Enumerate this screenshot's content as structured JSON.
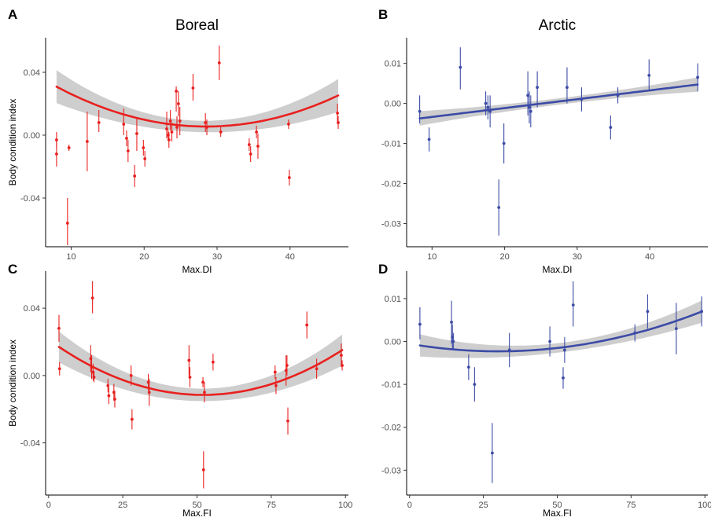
{
  "chart_data": [
    {
      "panel": "A",
      "title": "Boreal",
      "type": "scatter",
      "xlabel": "Max.DI",
      "ylabel": "Body condition index",
      "xlim": [
        6.5,
        48
      ],
      "ylim": [
        -0.071,
        0.062
      ],
      "xticks": [
        10,
        20,
        30,
        40
      ],
      "yticks": [
        0.04,
        0.0,
        -0.04
      ],
      "ytick_labels": [
        "0.04",
        "0.00",
        "-0.04"
      ],
      "color": "#e8211f",
      "points": [
        {
          "x": 8.0,
          "y": -0.003,
          "lo": -0.008,
          "hi": 0.002
        },
        {
          "x": 8.0,
          "y": -0.012,
          "lo": -0.02,
          "hi": -0.004
        },
        {
          "x": 9.5,
          "y": -0.056,
          "lo": -0.07,
          "hi": -0.04
        },
        {
          "x": 9.7,
          "y": -0.008,
          "lo": -0.01,
          "hi": -0.006
        },
        {
          "x": 12.2,
          "y": -0.004,
          "lo": -0.023,
          "hi": 0.015
        },
        {
          "x": 13.8,
          "y": 0.008,
          "lo": 0.002,
          "hi": 0.016
        },
        {
          "x": 17.2,
          "y": 0.007,
          "lo": 0.0,
          "hi": 0.017
        },
        {
          "x": 17.6,
          "y": -0.002,
          "lo": -0.007,
          "hi": 0.003
        },
        {
          "x": 17.8,
          "y": -0.01,
          "lo": -0.017,
          "hi": -0.003
        },
        {
          "x": 18.7,
          "y": -0.026,
          "lo": -0.033,
          "hi": -0.019
        },
        {
          "x": 19.0,
          "y": 0.001,
          "lo": -0.01,
          "hi": 0.011
        },
        {
          "x": 19.9,
          "y": -0.008,
          "lo": -0.013,
          "hi": -0.003
        },
        {
          "x": 20.1,
          "y": -0.015,
          "lo": -0.02,
          "hi": -0.01
        },
        {
          "x": 23.1,
          "y": 0.004,
          "lo": -0.002,
          "hi": 0.015
        },
        {
          "x": 23.3,
          "y": 0.0,
          "lo": -0.003,
          "hi": 0.003
        },
        {
          "x": 23.4,
          "y": -0.003,
          "lo": -0.008,
          "hi": 0.002
        },
        {
          "x": 23.6,
          "y": 0.009,
          "lo": 0.003,
          "hi": 0.016
        },
        {
          "x": 23.8,
          "y": 0.002,
          "lo": -0.004,
          "hi": 0.008
        },
        {
          "x": 24.4,
          "y": 0.028,
          "lo": 0.015,
          "hi": 0.031
        },
        {
          "x": 24.5,
          "y": 0.005,
          "lo": -0.002,
          "hi": 0.012
        },
        {
          "x": 24.7,
          "y": 0.02,
          "lo": 0.012,
          "hi": 0.028
        },
        {
          "x": 24.9,
          "y": 0.009,
          "lo": 0.0,
          "hi": 0.018
        },
        {
          "x": 26.7,
          "y": 0.03,
          "lo": 0.022,
          "hi": 0.039
        },
        {
          "x": 28.4,
          "y": 0.008,
          "lo": 0.002,
          "hi": 0.014
        },
        {
          "x": 28.6,
          "y": 0.005,
          "lo": 0.0,
          "hi": 0.01
        },
        {
          "x": 30.3,
          "y": 0.046,
          "lo": 0.035,
          "hi": 0.057
        },
        {
          "x": 30.5,
          "y": 0.002,
          "lo": -0.001,
          "hi": 0.005
        },
        {
          "x": 34.4,
          "y": -0.006,
          "lo": -0.01,
          "hi": -0.002
        },
        {
          "x": 34.6,
          "y": -0.012,
          "lo": -0.017,
          "hi": -0.007
        },
        {
          "x": 35.4,
          "y": 0.002,
          "lo": -0.002,
          "hi": 0.006
        },
        {
          "x": 35.6,
          "y": -0.007,
          "lo": -0.015,
          "hi": 0.001
        },
        {
          "x": 39.8,
          "y": 0.007,
          "lo": 0.004,
          "hi": 0.01
        },
        {
          "x": 39.9,
          "y": -0.027,
          "lo": -0.032,
          "hi": -0.022
        },
        {
          "x": 46.5,
          "y": 0.014,
          "lo": 0.007,
          "hi": 0.02
        },
        {
          "x": 46.6,
          "y": 0.008,
          "lo": 0.004,
          "hi": 0.012
        }
      ],
      "fit": {
        "type": "quadratic",
        "x0": 28.5,
        "peak": 0.0055,
        "k": 6.03e-05,
        "se_mid": 0.0036,
        "se_end": 0.0105
      }
    },
    {
      "panel": "B",
      "title": "Arctic",
      "type": "scatter",
      "xlabel": "Max.DI",
      "ylabel": "",
      "xlim": [
        6.5,
        48
      ],
      "ylim": [
        -0.0358,
        0.0164
      ],
      "xticks": [
        10,
        20,
        30,
        40
      ],
      "yticks": [
        0.01,
        0.0,
        -0.01,
        -0.02,
        -0.03
      ],
      "ytick_labels": [
        "0.01",
        "0.00",
        "-0.01",
        "-0.02",
        "-0.03"
      ],
      "color": "#3c4ba6",
      "points": [
        {
          "x": 8.3,
          "y": -0.002,
          "lo": -0.005,
          "hi": 0.002
        },
        {
          "x": 9.6,
          "y": -0.009,
          "lo": -0.012,
          "hi": -0.006
        },
        {
          "x": 13.9,
          "y": 0.009,
          "lo": 0.0035,
          "hi": 0.014
        },
        {
          "x": 17.4,
          "y": 0.0,
          "lo": -0.003,
          "hi": 0.003
        },
        {
          "x": 17.7,
          "y": -0.001,
          "lo": -0.004,
          "hi": 0.002
        },
        {
          "x": 18.0,
          "y": -0.002,
          "lo": -0.006,
          "hi": 0.002
        },
        {
          "x": 19.2,
          "y": -0.026,
          "lo": -0.033,
          "hi": -0.019
        },
        {
          "x": 19.9,
          "y": -0.01,
          "lo": -0.015,
          "hi": -0.005
        },
        {
          "x": 23.2,
          "y": 0.002,
          "lo": -0.003,
          "hi": 0.008
        },
        {
          "x": 23.4,
          "y": -0.001,
          "lo": -0.005,
          "hi": 0.003
        },
        {
          "x": 23.6,
          "y": -0.002,
          "lo": -0.006,
          "hi": 0.002
        },
        {
          "x": 24.5,
          "y": 0.004,
          "lo": -0.001,
          "hi": 0.008
        },
        {
          "x": 28.6,
          "y": 0.004,
          "lo": 0.0,
          "hi": 0.009
        },
        {
          "x": 30.6,
          "y": 0.001,
          "lo": -0.002,
          "hi": 0.004
        },
        {
          "x": 34.6,
          "y": -0.006,
          "lo": -0.009,
          "hi": -0.003
        },
        {
          "x": 35.6,
          "y": 0.002,
          "lo": 0.0,
          "hi": 0.004
        },
        {
          "x": 39.9,
          "y": 0.007,
          "lo": 0.003,
          "hi": 0.011
        },
        {
          "x": 46.6,
          "y": 0.0065,
          "lo": 0.003,
          "hi": 0.01
        }
      ],
      "fit": {
        "type": "linear",
        "slope": 0.000221,
        "intercept": -0.00559,
        "se_mid": 0.0008,
        "se_end": 0.0018
      }
    },
    {
      "panel": "C",
      "title": "",
      "type": "scatter",
      "xlabel": "Max.FI",
      "ylabel": "Body condition index",
      "xlim": [
        -1,
        101
      ],
      "ylim": [
        -0.071,
        0.062
      ],
      "xticks": [
        0,
        25,
        50,
        75,
        100
      ],
      "yticks": [
        0.04,
        0.0,
        -0.04
      ],
      "ytick_labels": [
        "0.04",
        "0.00",
        "-0.04"
      ],
      "color": "#e8211f",
      "points": [
        {
          "x": 3.5,
          "y": 0.028,
          "lo": 0.02,
          "hi": 0.036
        },
        {
          "x": 3.7,
          "y": 0.004,
          "lo": 0.0,
          "hi": 0.008
        },
        {
          "x": 14.2,
          "y": 0.01,
          "lo": 0.002,
          "hi": 0.018
        },
        {
          "x": 14.5,
          "y": 0.005,
          "lo": -0.002,
          "hi": 0.012
        },
        {
          "x": 14.8,
          "y": 0.046,
          "lo": 0.037,
          "hi": 0.056
        },
        {
          "x": 15.0,
          "y": 0.002,
          "lo": -0.003,
          "hi": 0.007
        },
        {
          "x": 15.3,
          "y": -0.001,
          "lo": -0.004,
          "hi": 0.002
        },
        {
          "x": 20.0,
          "y": -0.006,
          "lo": -0.01,
          "hi": -0.002
        },
        {
          "x": 20.3,
          "y": -0.012,
          "lo": -0.017,
          "hi": -0.007
        },
        {
          "x": 22.0,
          "y": -0.01,
          "lo": -0.015,
          "hi": -0.005
        },
        {
          "x": 22.3,
          "y": -0.014,
          "lo": -0.019,
          "hi": -0.009
        },
        {
          "x": 27.8,
          "y": 0.0,
          "lo": -0.006,
          "hi": 0.006
        },
        {
          "x": 28.1,
          "y": -0.026,
          "lo": -0.032,
          "hi": -0.02
        },
        {
          "x": 33.6,
          "y": -0.004,
          "lo": -0.009,
          "hi": 0.001
        },
        {
          "x": 33.9,
          "y": -0.01,
          "lo": -0.018,
          "hi": -0.002
        },
        {
          "x": 47.3,
          "y": 0.009,
          "lo": 0.0,
          "hi": 0.018
        },
        {
          "x": 47.6,
          "y": -0.001,
          "lo": -0.007,
          "hi": 0.005
        },
        {
          "x": 52.0,
          "y": -0.004,
          "lo": -0.007,
          "hi": -0.001
        },
        {
          "x": 52.2,
          "y": -0.056,
          "lo": -0.067,
          "hi": -0.045
        },
        {
          "x": 52.5,
          "y": -0.01,
          "lo": -0.016,
          "hi": -0.004
        },
        {
          "x": 55.4,
          "y": 0.008,
          "lo": 0.003,
          "hi": 0.013
        },
        {
          "x": 76.3,
          "y": 0.002,
          "lo": -0.002,
          "hi": 0.006
        },
        {
          "x": 76.6,
          "y": -0.006,
          "lo": -0.011,
          "hi": -0.001
        },
        {
          "x": 80.0,
          "y": 0.003,
          "lo": -0.006,
          "hi": 0.012
        },
        {
          "x": 80.3,
          "y": 0.006,
          "lo": 0.0,
          "hi": 0.012
        },
        {
          "x": 80.6,
          "y": -0.027,
          "lo": -0.035,
          "hi": -0.019
        },
        {
          "x": 87.0,
          "y": 0.03,
          "lo": 0.022,
          "hi": 0.038
        },
        {
          "x": 90.3,
          "y": 0.004,
          "lo": -0.002,
          "hi": 0.01
        },
        {
          "x": 98.6,
          "y": 0.012,
          "lo": 0.005,
          "hi": 0.019
        },
        {
          "x": 98.9,
          "y": 0.006,
          "lo": 0.003,
          "hi": 0.009
        }
      ],
      "fit": {
        "type": "quadratic",
        "x0": 52,
        "peak": -0.0115,
        "k": 1.21e-05,
        "se_mid": 0.0037,
        "se_end": 0.0092
      }
    },
    {
      "panel": "D",
      "title": "",
      "type": "scatter",
      "xlabel": "Max.FI",
      "ylabel": "",
      "xlim": [
        -1,
        101
      ],
      "ylim": [
        -0.0358,
        0.0164
      ],
      "xticks": [
        0,
        25,
        50,
        75,
        100
      ],
      "yticks": [
        0.01,
        0.0,
        -0.01,
        -0.02,
        -0.03
      ],
      "ytick_labels": [
        "0.01",
        "0.00",
        "-0.01",
        "-0.02",
        "-0.03"
      ],
      "color": "#3c4ba6",
      "points": [
        {
          "x": 3.5,
          "y": 0.004,
          "lo": 0.0005,
          "hi": 0.008
        },
        {
          "x": 14.2,
          "y": 0.0045,
          "lo": -0.0005,
          "hi": 0.0095
        },
        {
          "x": 14.5,
          "y": 0.001,
          "lo": -0.002,
          "hi": 0.004
        },
        {
          "x": 14.8,
          "y": 0.0,
          "lo": -0.002,
          "hi": 0.002
        },
        {
          "x": 20.0,
          "y": -0.006,
          "lo": -0.009,
          "hi": -0.003
        },
        {
          "x": 22.0,
          "y": -0.01,
          "lo": -0.014,
          "hi": -0.006
        },
        {
          "x": 28.0,
          "y": -0.026,
          "lo": -0.033,
          "hi": -0.019
        },
        {
          "x": 33.8,
          "y": -0.002,
          "lo": -0.006,
          "hi": 0.002
        },
        {
          "x": 47.5,
          "y": 0.0,
          "lo": -0.0035,
          "hi": 0.0035
        },
        {
          "x": 52.0,
          "y": -0.0085,
          "lo": -0.011,
          "hi": -0.006
        },
        {
          "x": 52.5,
          "y": -0.002,
          "lo": -0.005,
          "hi": 0.001
        },
        {
          "x": 55.4,
          "y": 0.0085,
          "lo": 0.0035,
          "hi": 0.014
        },
        {
          "x": 76.3,
          "y": 0.002,
          "lo": 0.0,
          "hi": 0.004
        },
        {
          "x": 80.6,
          "y": 0.007,
          "lo": 0.003,
          "hi": 0.011
        },
        {
          "x": 90.3,
          "y": 0.003,
          "lo": -0.003,
          "hi": 0.009
        },
        {
          "x": 98.9,
          "y": 0.007,
          "lo": 0.0035,
          "hi": 0.0105
        }
      ],
      "fit": {
        "type": "quadratic",
        "x0": 30,
        "peak": -0.0023,
        "k": 1.95e-06,
        "se_mid": 0.0011,
        "se_end": 0.0026
      }
    }
  ]
}
